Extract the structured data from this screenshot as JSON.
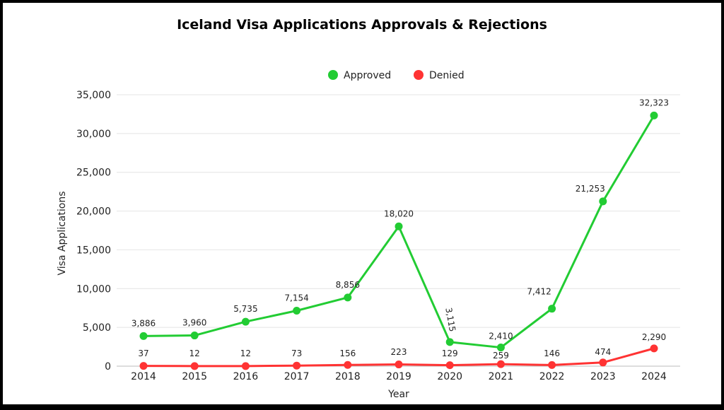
{
  "chart_data": {
    "type": "line",
    "title": "Iceland Visa Applications Approvals & Rejections",
    "xlabel": "Year",
    "ylabel": "Visa Applications",
    "categories": [
      "2014",
      "2015",
      "2016",
      "2017",
      "2018",
      "2019",
      "2020",
      "2021",
      "2022",
      "2023",
      "2024"
    ],
    "ylim": [
      0,
      35000
    ],
    "yticks": [
      "0",
      "5,000",
      "10,000",
      "15,000",
      "20,000",
      "25,000",
      "30,000",
      "35,000"
    ],
    "grid": true,
    "legend_position": "top",
    "series": [
      {
        "name": "Approved",
        "color": "#22cc33",
        "values": [
          3886,
          3960,
          5735,
          7154,
          8856,
          18020,
          3115,
          2410,
          7412,
          21253,
          32323
        ],
        "labels": [
          "3,886",
          "3,960",
          "5,735",
          "7,154",
          "8,856",
          "18,020",
          "3,115",
          "2,410",
          "7,412",
          "21,253",
          "32,323"
        ]
      },
      {
        "name": "Denied",
        "color": "#ff3333",
        "values": [
          37,
          12,
          12,
          73,
          156,
          223,
          129,
          259,
          146,
          474,
          2290
        ],
        "labels": [
          "37",
          "12",
          "12",
          "73",
          "156",
          "223",
          "129",
          "259",
          "146",
          "474",
          "2,290"
        ]
      }
    ]
  }
}
